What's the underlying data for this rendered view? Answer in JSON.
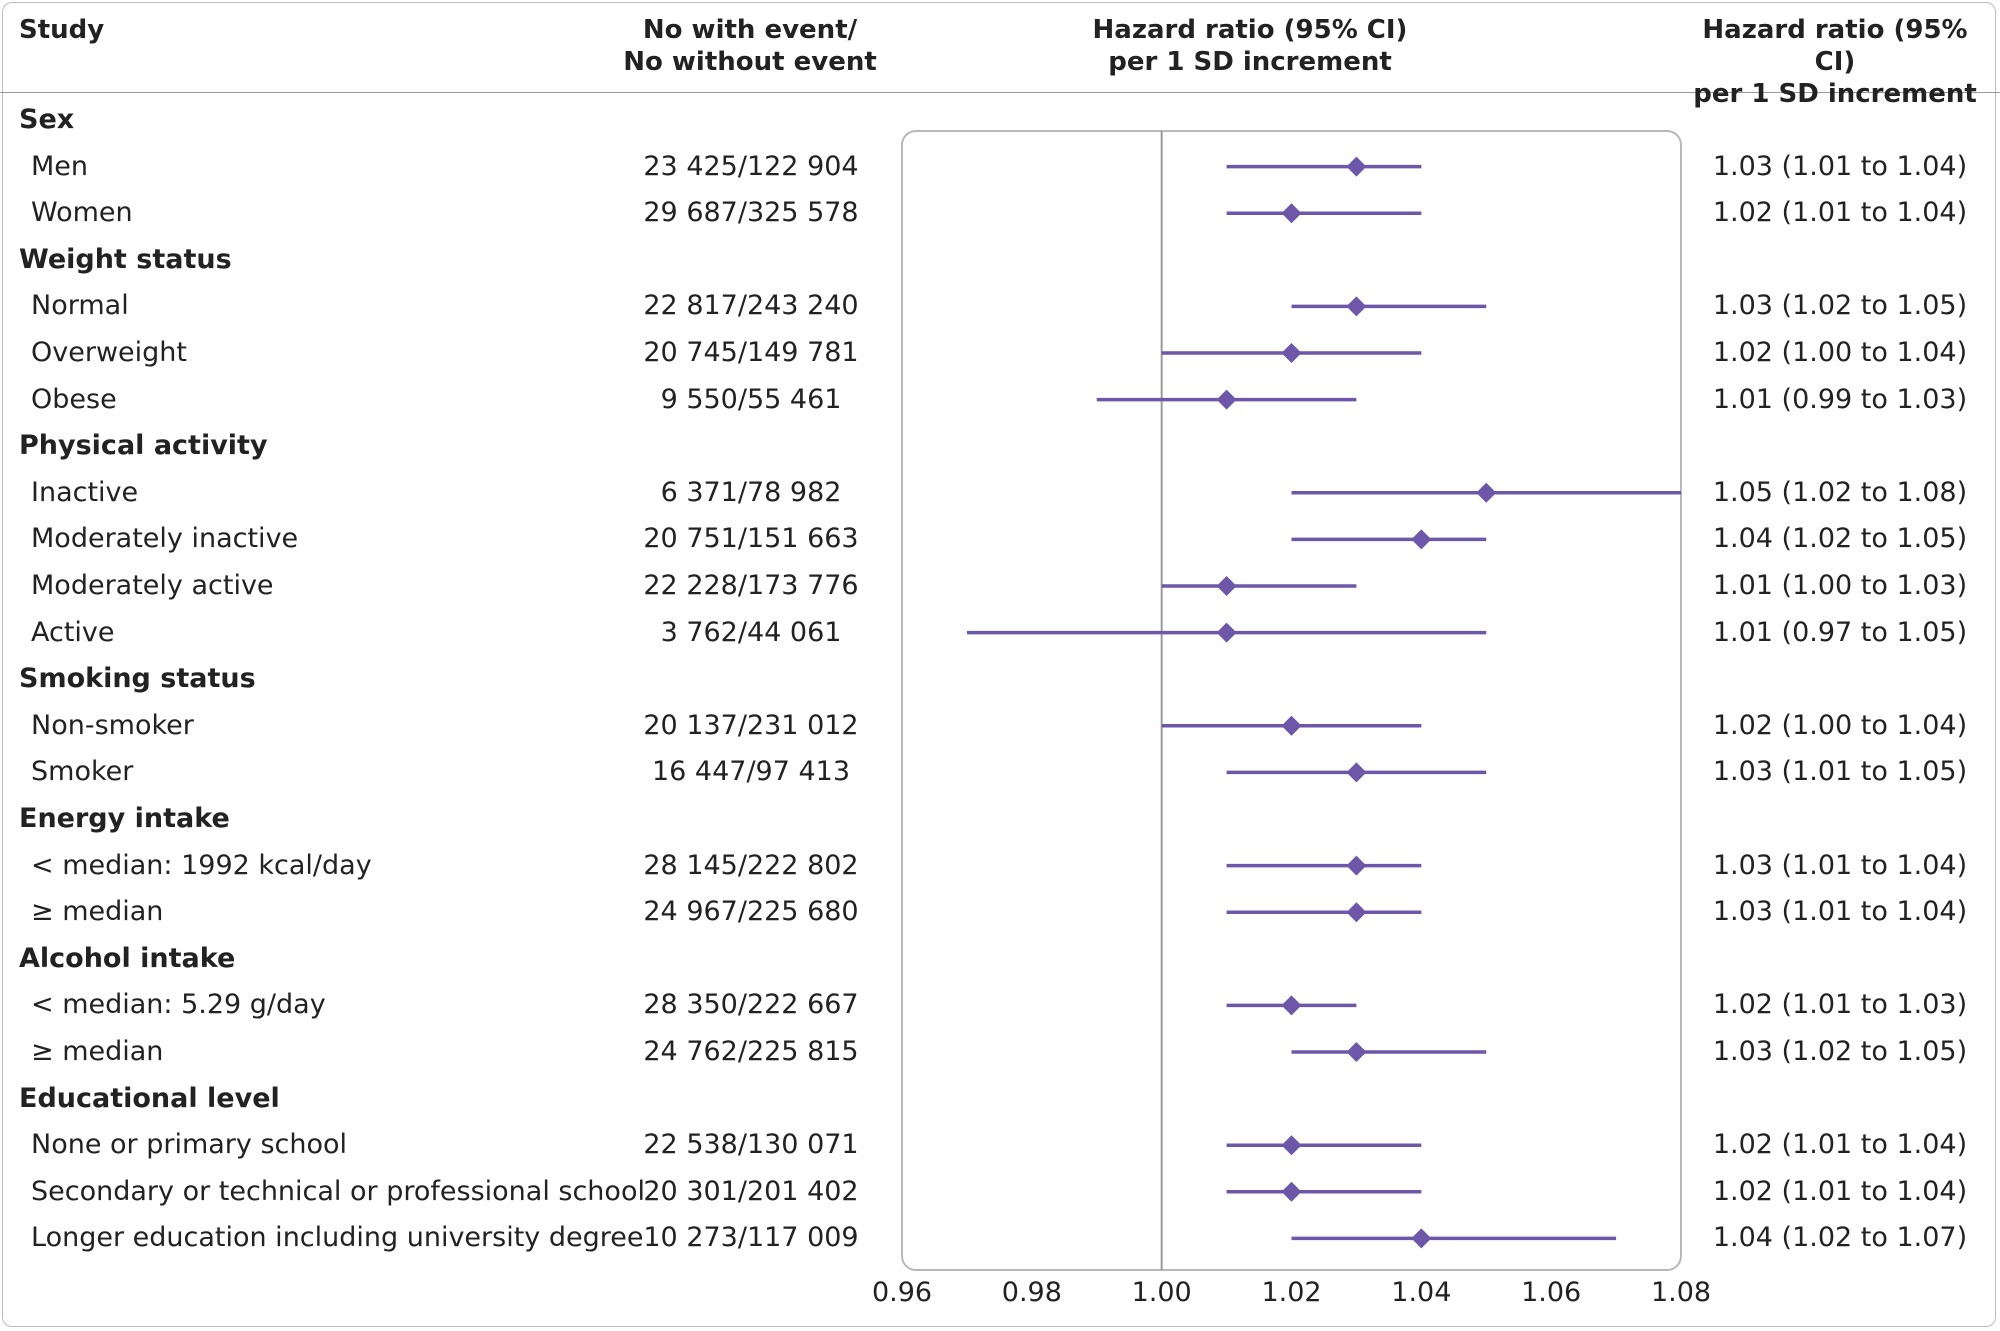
{
  "headers": {
    "study": "Study",
    "events_line1": "No with event/",
    "events_line2": "No without event",
    "hr_plot_line1": "Hazard ratio (95% CI)",
    "hr_plot_line2": "per 1 SD increment",
    "hr_text_line1": "Hazard ratio (95% CI)",
    "hr_text_line2": "per 1 SD increment"
  },
  "colors": {
    "marker": "#6e57a8",
    "refline": "#9a9a9a",
    "box": "#b8b8b8"
  },
  "chart_data": {
    "type": "forest",
    "xlim": [
      0.96,
      1.08
    ],
    "reference_value": 1.0,
    "x_ticks": [
      "0.96",
      "0.98",
      "1.00",
      "1.02",
      "1.04",
      "1.06",
      "1.08"
    ],
    "rows": [
      {
        "label": "Sex",
        "group": true
      },
      {
        "label": "Men",
        "events": "23 425/122 904",
        "hr": 1.03,
        "lo": 1.01,
        "hi": 1.04,
        "text": "1.03 (1.01 to 1.04)"
      },
      {
        "label": "Women",
        "events": "29 687/325 578",
        "hr": 1.02,
        "lo": 1.01,
        "hi": 1.04,
        "text": "1.02 (1.01 to 1.04)"
      },
      {
        "label": "Weight status",
        "group": true
      },
      {
        "label": "Normal",
        "events": "22 817/243 240",
        "hr": 1.03,
        "lo": 1.02,
        "hi": 1.05,
        "text": "1.03 (1.02 to 1.05)"
      },
      {
        "label": "Overweight",
        "events": "20 745/149 781",
        "hr": 1.02,
        "lo": 1.0,
        "hi": 1.04,
        "text": "1.02 (1.00 to 1.04)"
      },
      {
        "label": "Obese",
        "events": "9 550/55 461",
        "hr": 1.01,
        "lo": 0.99,
        "hi": 1.03,
        "text": "1.01 (0.99 to 1.03)"
      },
      {
        "label": "Physical activity",
        "group": true
      },
      {
        "label": "Inactive",
        "events": "6 371/78 982",
        "hr": 1.05,
        "lo": 1.02,
        "hi": 1.08,
        "text": "1.05 (1.02 to 1.08)"
      },
      {
        "label": "Moderately inactive",
        "events": "20 751/151 663",
        "hr": 1.04,
        "lo": 1.02,
        "hi": 1.05,
        "text": "1.04 (1.02 to 1.05)"
      },
      {
        "label": "Moderately active",
        "events": "22 228/173 776",
        "hr": 1.01,
        "lo": 1.0,
        "hi": 1.03,
        "text": "1.01 (1.00 to 1.03)"
      },
      {
        "label": "Active",
        "events": "3 762/44 061",
        "hr": 1.01,
        "lo": 0.97,
        "hi": 1.05,
        "text": "1.01 (0.97 to 1.05)"
      },
      {
        "label": "Smoking status",
        "group": true
      },
      {
        "label": "Non-smoker",
        "events": "20 137/231 012",
        "hr": 1.02,
        "lo": 1.0,
        "hi": 1.04,
        "text": "1.02 (1.00 to 1.04)"
      },
      {
        "label": "Smoker",
        "events": "16 447/97 413",
        "hr": 1.03,
        "lo": 1.01,
        "hi": 1.05,
        "text": "1.03 (1.01 to 1.05)"
      },
      {
        "label": "Energy intake",
        "group": true
      },
      {
        "label": "< median: 1992 kcal/day",
        "events": "28 145/222 802",
        "hr": 1.03,
        "lo": 1.01,
        "hi": 1.04,
        "text": "1.03 (1.01 to 1.04)"
      },
      {
        "label": "≥ median",
        "events": "24 967/225 680",
        "hr": 1.03,
        "lo": 1.01,
        "hi": 1.04,
        "text": "1.03 (1.01 to 1.04)"
      },
      {
        "label": "Alcohol intake",
        "group": true
      },
      {
        "label": "< median: 5.29 g/day",
        "events": "28 350/222 667",
        "hr": 1.02,
        "lo": 1.01,
        "hi": 1.03,
        "text": "1.02 (1.01 to 1.03)"
      },
      {
        "label": "≥ median",
        "events": "24 762/225 815",
        "hr": 1.03,
        "lo": 1.02,
        "hi": 1.05,
        "text": "1.03 (1.02 to 1.05)"
      },
      {
        "label": "Educational level",
        "group": true
      },
      {
        "label": "None or primary school",
        "events": "22 538/130 071",
        "hr": 1.02,
        "lo": 1.01,
        "hi": 1.04,
        "text": "1.02 (1.01 to 1.04)"
      },
      {
        "label": "Secondary or technical or professional school",
        "events": "20 301/201 402",
        "hr": 1.02,
        "lo": 1.01,
        "hi": 1.04,
        "text": "1.02 (1.01 to 1.04)"
      },
      {
        "label": "Longer education including university degree",
        "events": "10 273/117 009",
        "hr": 1.04,
        "lo": 1.02,
        "hi": 1.07,
        "text": "1.04 (1.02 to 1.07)"
      }
    ]
  }
}
